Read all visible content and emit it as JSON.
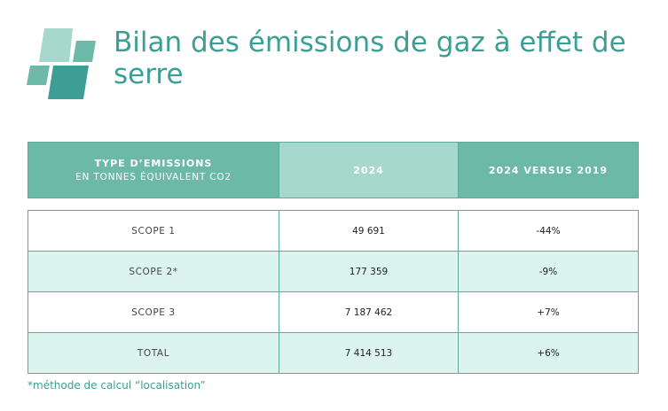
{
  "title": "Bilan des émissions de gaz à effet de serre",
  "colors": {
    "accent": "#3d9e95",
    "header_dark": "#6db9a8",
    "header_light": "#a6d8cc",
    "row_alt": "#dcf4ee"
  },
  "logo_icon": "tiles-logo-icon",
  "table": {
    "headers": {
      "type_label": "TYPE D’EMISSIONS",
      "type_sub": "EN TONNES ÉQUIVALENT CO2",
      "year": "2024",
      "versus": "2024 VERSUS 2019"
    },
    "rows": [
      {
        "type": "SCOPE 1",
        "value": "49 691",
        "change": "-44%"
      },
      {
        "type": "SCOPE 2*",
        "value": "177 359",
        "change": "-9%"
      },
      {
        "type": "SCOPE 3",
        "value": "7 187 462",
        "change": "+7%"
      },
      {
        "type": "TOTAL",
        "value": "7 414 513",
        "change": "+6%"
      }
    ]
  },
  "footnote": "*méthode de calcul “localisation”"
}
